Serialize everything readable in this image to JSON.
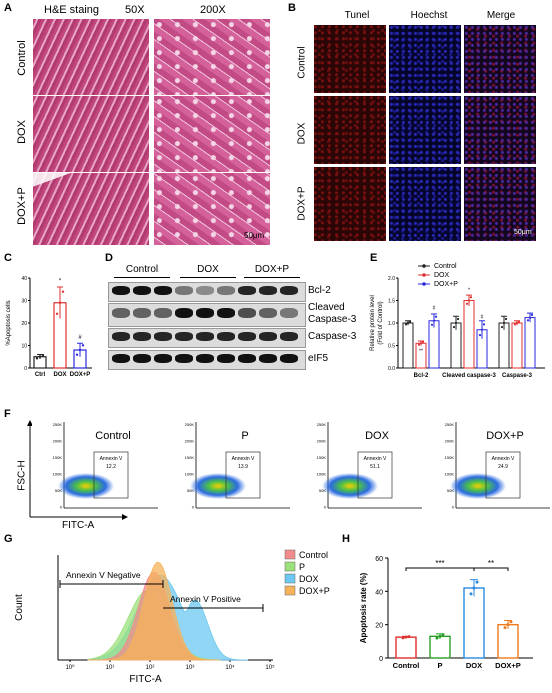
{
  "panel_letters": {
    "a": "A",
    "b": "B",
    "c": "C",
    "d": "D",
    "e": "E",
    "f": "F",
    "g": "G",
    "h": "H"
  },
  "panel_a": {
    "header": "H&E staing",
    "mag_low": "50X",
    "mag_high": "200X",
    "rows": [
      "Control",
      "DOX",
      "DOX+P"
    ],
    "scale": "50μm"
  },
  "panel_b": {
    "columns": [
      "Tunel",
      "Hoechst",
      "Merge"
    ],
    "rows": [
      "Control",
      "DOX",
      "DOX+P"
    ],
    "scale": "50μm"
  },
  "panel_c": {
    "ylabel": "%Apoptosis cells",
    "categories": [
      "Ctrl",
      "DOX",
      "DOX+P"
    ],
    "sig": [
      "*",
      "#"
    ]
  },
  "panel_d": {
    "groups": [
      "Control",
      "DOX",
      "DOX+P"
    ],
    "proteins": [
      "Bcl-2",
      "Cleaved\nCaspase-3",
      "Caspase-3",
      "eIF5"
    ],
    "protein_labels": {
      "bcl2": "Bcl-2",
      "cleaved1": "Cleaved",
      "cleaved2": "Caspase-3",
      "casp3": "Caspase-3",
      "eif5": "eIF5"
    }
  },
  "panel_e": {
    "ylabel1": "Relative protein level",
    "ylabel2": "(Fold of Control)",
    "legend": [
      "Control",
      "DOX",
      "DOX+P"
    ],
    "categories": [
      "Bcl-2",
      "Cleaved caspase-3",
      "Caspase-3"
    ],
    "sig": [
      "**",
      "#",
      "*",
      "#"
    ]
  },
  "panel_f": {
    "ylabel": "FSC-H",
    "xlabel": "FITC-A",
    "plots": [
      {
        "title": "Control",
        "gate": "Annexin V",
        "value": "12.2"
      },
      {
        "title": "P",
        "gate": "Annexin V",
        "value": "13.9"
      },
      {
        "title": "DOX",
        "gate": "Annexin V",
        "value": "51.1"
      },
      {
        "title": "DOX+P",
        "gate": "Annexin V",
        "value": "24.9"
      }
    ],
    "yticks": [
      "250K",
      "200K",
      "150K",
      "100K",
      "50K",
      "0"
    ]
  },
  "panel_g": {
    "ylabel": "Count",
    "xlabel": "FITC-A",
    "neg_label": "Annexin V Negative",
    "pos_label": "Annexin V Positive",
    "legend": [
      {
        "name": "Control",
        "color": "#f28b8b"
      },
      {
        "name": "P",
        "color": "#9be07a"
      },
      {
        "name": "DOX",
        "color": "#6cc8f0"
      },
      {
        "name": "DOX+P",
        "color": "#f5b25a"
      }
    ]
  },
  "panel_h": {
    "ylabel": "Apoptosis rate (%)",
    "categories": [
      "Control",
      "P",
      "DOX",
      "DOX+P"
    ],
    "sig": [
      "***",
      "**"
    ]
  },
  "chart_data": [
    {
      "type": "bar",
      "panel": "C",
      "categories": [
        "Ctrl",
        "DOX",
        "DOX+P"
      ],
      "values": [
        5,
        29,
        8
      ],
      "errors": [
        1,
        7,
        3
      ],
      "colors": [
        "#222222",
        "#e03030",
        "#2a2ae0"
      ],
      "ylabel": "%Apoptosis cells",
      "ylim": [
        0,
        40
      ]
    },
    {
      "type": "bar",
      "panel": "E",
      "categories": [
        "Bcl-2",
        "Cleaved caspase-3",
        "Caspase-3"
      ],
      "series": [
        {
          "name": "Control",
          "values": [
            1.0,
            1.0,
            1.0
          ],
          "errors": [
            0.05,
            0.15,
            0.15
          ],
          "color": "#222222"
        },
        {
          "name": "DOX",
          "values": [
            0.55,
            1.5,
            1.0
          ],
          "errors": [
            0.05,
            0.12,
            0.05
          ],
          "color": "#e03030"
        },
        {
          "name": "DOX+P",
          "values": [
            1.05,
            0.85,
            1.12
          ],
          "errors": [
            0.15,
            0.2,
            0.1
          ],
          "color": "#2a2ae0"
        }
      ],
      "ylabel": "Relative protein level (Fold of Control)",
      "ylim": [
        0,
        2.0
      ]
    },
    {
      "type": "bar",
      "panel": "H",
      "categories": [
        "Control",
        "P",
        "DOX",
        "DOX+P"
      ],
      "values": [
        12.5,
        13,
        42,
        20
      ],
      "errors": [
        0.5,
        1.5,
        5,
        2.5
      ],
      "colors": [
        "#e03030",
        "#2aa02a",
        "#2a8ae0",
        "#f07a20"
      ],
      "ylabel": "Apoptosis rate (%)",
      "ylim": [
        0,
        60
      ]
    }
  ]
}
